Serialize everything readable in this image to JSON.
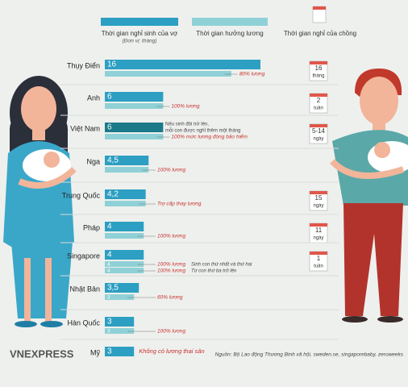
{
  "chart_data": {
    "type": "bar",
    "legend": [
      {
        "name": "Thời gian nghỉ sinh của vợ",
        "note": "(Đơn vị: tháng)",
        "color": "#2c9fc2"
      },
      {
        "name": "Thời gian hưởng lương",
        "color": "#8fd1d6"
      },
      {
        "name": "Thời gian nghỉ của chồng",
        "color": "#e0574a"
      }
    ],
    "highlight_color": "#1b7a8a",
    "note_color": "#c8312c",
    "rows": [
      {
        "category": "Thụy Điển",
        "leave": 16,
        "paid": [
          {
            "value": 13,
            "note": "80% lương"
          }
        ],
        "father": [
          "16",
          "tháng"
        ]
      },
      {
        "category": "Anh",
        "leave": 6,
        "paid": [
          {
            "value": 6,
            "note": "100% lương"
          }
        ],
        "father": [
          "2",
          "tuần"
        ]
      },
      {
        "category": "Việt Nam",
        "leave": 6,
        "highlight": true,
        "remark": [
          "Nếu sinh đôi trở lên,",
          "mỗi con được nghỉ thêm một tháng"
        ],
        "paid": [
          {
            "value": 6,
            "note": "100% mức lương đóng bảo hiểm"
          }
        ],
        "father": [
          "5-14",
          "ngày"
        ]
      },
      {
        "category": "Nga",
        "leave": 4.5,
        "leave_label": "4,5",
        "paid": [
          {
            "value": 4.5,
            "note": "100% lương"
          }
        ]
      },
      {
        "category": "Trung Quốc",
        "leave": 4.2,
        "leave_label": "4,2",
        "paid": [
          {
            "value": 4.2,
            "note": "Trợ cấp thay lương"
          }
        ],
        "father": [
          "15",
          "ngày"
        ]
      },
      {
        "category": "Pháp",
        "leave": 4,
        "paid": [
          {
            "value": 4,
            "note": "100% lương"
          }
        ],
        "father": [
          "11",
          "ngày"
        ]
      },
      {
        "category": "Singapore",
        "leave": 4,
        "paid": [
          {
            "value": 4,
            "labeled": true,
            "note": "100% lương",
            "detail": "Sinh con thứ nhất và thứ hai"
          },
          {
            "value": 4,
            "labeled": true,
            "note": "100% lương",
            "detail": "Từ con thứ ba trở lên"
          }
        ],
        "father": [
          "1",
          "tuần"
        ]
      },
      {
        "category": "Nhật Bản",
        "leave": 3.5,
        "leave_label": "3,5",
        "paid": [
          {
            "value": 3,
            "labeled": true,
            "note": "60% lương"
          }
        ]
      },
      {
        "category": "Hàn Quốc",
        "leave": 3,
        "paid": [
          {
            "value": 3,
            "labeled": true,
            "note": "100% lương"
          }
        ]
      },
      {
        "category": "Mỹ",
        "leave": 3,
        "paid": [],
        "remark_inline": "Không có lương thai sản"
      }
    ],
    "source": "Nguồn: Bộ Lao động Thương Binh xã hội, sweden.se, singaporebaby, zeroweeks",
    "logo": "VNEXPRESS"
  }
}
